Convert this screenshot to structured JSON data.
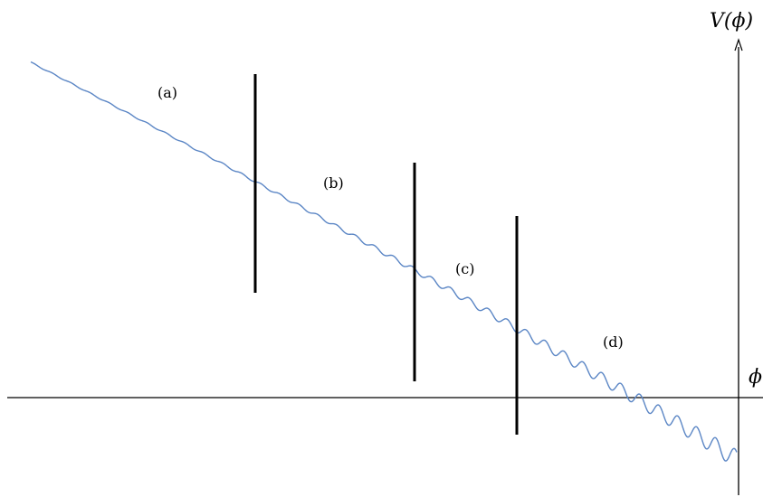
{
  "diagram": {
    "y_axis_label": "V(ϕ)",
    "x_axis_label": "ϕ",
    "regions": [
      {
        "label": "(a)"
      },
      {
        "label": "(b)"
      },
      {
        "label": "(c)"
      },
      {
        "label": "(d)"
      }
    ],
    "colors": {
      "axis": "#000000",
      "curve": "#5b86c5",
      "divider": "#000000"
    }
  }
}
